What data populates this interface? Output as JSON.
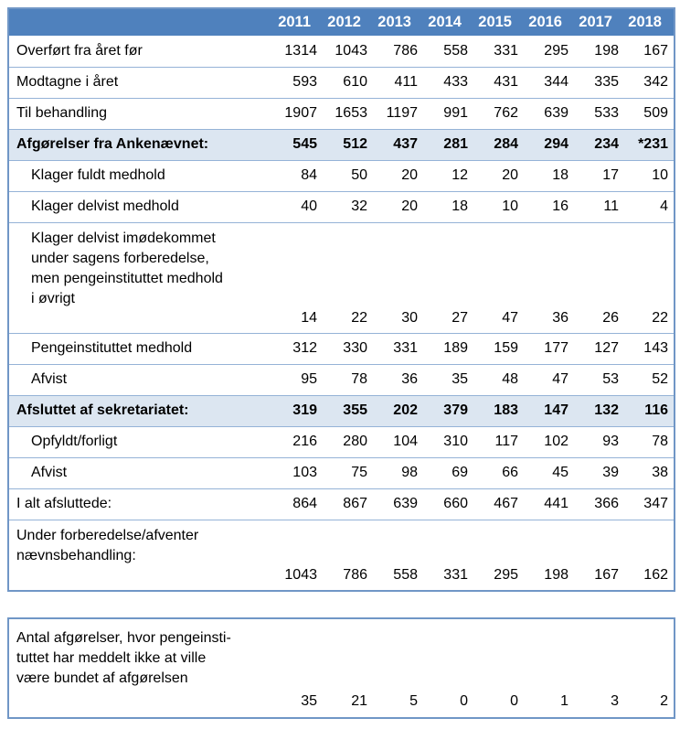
{
  "colors": {
    "header_bg": "#4F81BD",
    "header_text": "#FFFFFF",
    "highlight_row_bg": "#DCE6F1",
    "border_outer": "#7096C6",
    "border_inner": "#95B3D7"
  },
  "chart_data": {
    "type": "table",
    "columns": [
      "",
      "2011",
      "2012",
      "2013",
      "2014",
      "2015",
      "2016",
      "2017",
      "2018"
    ],
    "rows": [
      {
        "label": "Overført fra året før",
        "values": [
          "1314",
          "1043",
          "786",
          "558",
          "331",
          "295",
          "198",
          "167"
        ],
        "highlight": false,
        "indent": false,
        "values_below": false
      },
      {
        "label": "Modtagne i året",
        "values": [
          "593",
          "610",
          "411",
          "433",
          "431",
          "344",
          "335",
          "342"
        ],
        "highlight": false,
        "indent": false,
        "values_below": false
      },
      {
        "label": "Til behandling",
        "values": [
          "1907",
          "1653",
          "1197",
          "991",
          "762",
          "639",
          "533",
          "509"
        ],
        "highlight": false,
        "indent": false,
        "values_below": false
      },
      {
        "label": "Afgørelser fra Ankenævnet:",
        "values": [
          "545",
          "512",
          "437",
          "281",
          "284",
          "294",
          "234",
          "*231"
        ],
        "highlight": true,
        "indent": false,
        "values_below": false
      },
      {
        "label": "Klager fuldt medhold",
        "values": [
          "84",
          "50",
          "20",
          "12",
          "20",
          "18",
          "17",
          "10"
        ],
        "highlight": false,
        "indent": true,
        "values_below": false
      },
      {
        "label": "Klager delvist medhold",
        "values": [
          "40",
          "32",
          "20",
          "18",
          "10",
          "16",
          "11",
          "4"
        ],
        "highlight": false,
        "indent": true,
        "values_below": false
      },
      {
        "label": "Klager delvist imødekommet\nunder sagens forberedelse,\nmen pengeinstituttet medhold\ni øvrigt",
        "values": [
          "14",
          "22",
          "30",
          "27",
          "47",
          "36",
          "26",
          "22"
        ],
        "highlight": false,
        "indent": true,
        "values_below": true
      },
      {
        "label": "Pengeinstituttet medhold",
        "values": [
          "312",
          "330",
          "331",
          "189",
          "159",
          "177",
          "127",
          "143"
        ],
        "highlight": false,
        "indent": true,
        "values_below": false
      },
      {
        "label": "Afvist",
        "values": [
          "95",
          "78",
          "36",
          "35",
          "48",
          "47",
          "53",
          "52"
        ],
        "highlight": false,
        "indent": true,
        "values_below": false
      },
      {
        "label": "Afsluttet af sekretariatet:",
        "values": [
          "319",
          "355",
          "202",
          "379",
          "183",
          "147",
          "132",
          "116"
        ],
        "highlight": true,
        "indent": false,
        "values_below": false
      },
      {
        "label": "Opfyldt/forligt",
        "values": [
          "216",
          "280",
          "104",
          "310",
          "117",
          "102",
          "93",
          "78"
        ],
        "highlight": false,
        "indent": true,
        "values_below": false
      },
      {
        "label": "Afvist",
        "values": [
          "103",
          "75",
          "98",
          "69",
          "66",
          "45",
          "39",
          "38"
        ],
        "highlight": false,
        "indent": true,
        "values_below": false
      },
      {
        "label": "I alt afsluttede:",
        "values": [
          "864",
          "867",
          "639",
          "660",
          "467",
          "441",
          "366",
          "347"
        ],
        "highlight": false,
        "indent": false,
        "values_below": false
      },
      {
        "label": "Under forberedelse/afventer\nnævnsbehandling:",
        "values": [
          "1043",
          "786",
          "558",
          "331",
          "295",
          "198",
          "167",
          "162"
        ],
        "highlight": false,
        "indent": false,
        "values_below": true
      }
    ],
    "footer": {
      "label": "Antal afgørelser, hvor pengeinsti-\ntuttet har meddelt ikke at ville\nvære bundet af afgørelsen",
      "values": [
        "35",
        "21",
        "5",
        "0",
        "0",
        "1",
        "3",
        "2"
      ]
    }
  }
}
